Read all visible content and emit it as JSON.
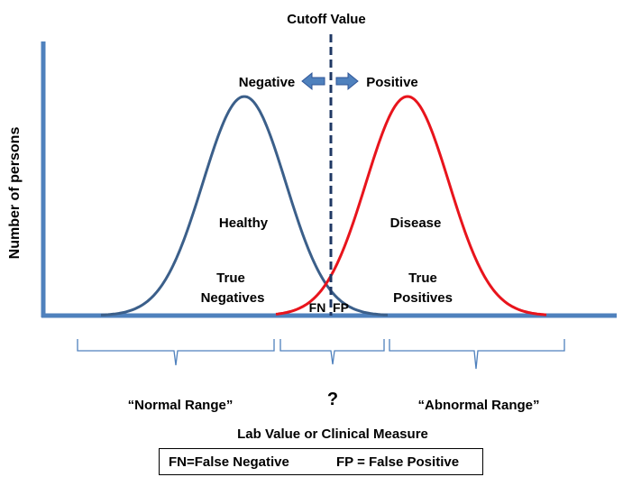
{
  "title": "Cutoff Value",
  "direction": {
    "negative": "Negative",
    "positive": "Positive"
  },
  "y_axis_label": "Number of persons",
  "x_axis_label": "Lab Value or Clinical Measure",
  "curves": {
    "healthy": {
      "label": "Healthy",
      "color": "#3b5f8a"
    },
    "disease": {
      "label": "Disease",
      "color": "#e8141c"
    }
  },
  "regions": {
    "true_negatives": [
      "True",
      "Negatives"
    ],
    "true_positives": [
      "True",
      "Positives"
    ],
    "fn": "FN",
    "fp": "FP"
  },
  "ranges": {
    "normal": "“Normal Range”",
    "uncertain": "?",
    "abnormal": "“Abnormal Range”"
  },
  "legend": {
    "fn": "FN=False Negative",
    "fp": "FP = False Positive"
  },
  "colors": {
    "axis": "#4f81bd",
    "cutoff": "#1f3864",
    "arrow": "#4f81bd",
    "brace": "#4f81bd"
  }
}
